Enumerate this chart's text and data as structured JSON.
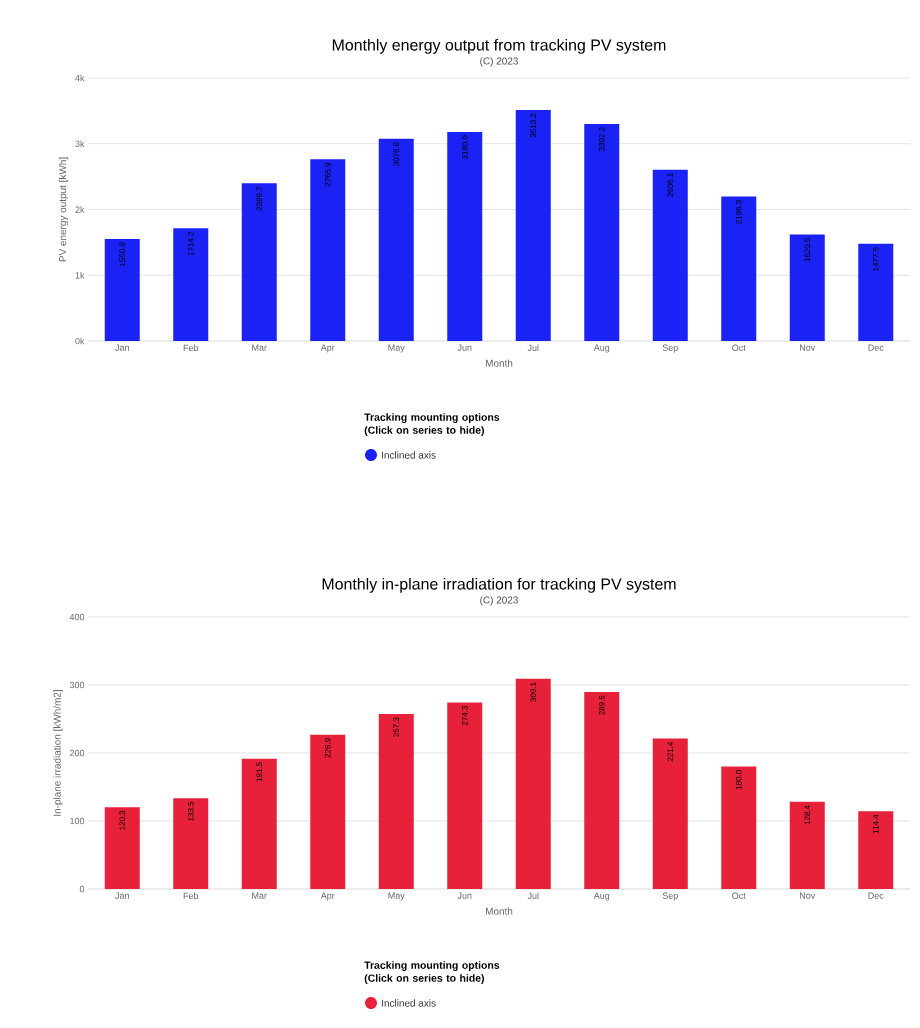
{
  "chart_data": [
    {
      "type": "bar",
      "title": "Monthly energy output from tracking PV system",
      "subtitle": "(C) 2023",
      "xlabel": "Month",
      "ylabel": "PV energy output [kWh]",
      "legend_title": "Tracking mounting options (Click on series to hide)",
      "categories": [
        "Jan",
        "Feb",
        "Mar",
        "Apr",
        "May",
        "Jun",
        "Jul",
        "Aug",
        "Sep",
        "Oct",
        "Nov",
        "Dec"
      ],
      "series": [
        {
          "name": "Inclined axis",
          "color": "#1a22f5",
          "values": [
            1550.9,
            1714.2,
            2399.7,
            2765.9,
            3076.8,
            3180.0,
            3513.2,
            3302.2,
            2606.1,
            2196.3,
            1620.5,
            1477.5
          ],
          "value_labels": [
            "1550.9",
            "1714.2",
            "2399.7",
            "2765.9",
            "3076.8",
            "3180.0",
            "3513.2",
            "3302.2",
            "2606.1",
            "2196.3",
            "1620.5",
            "1477.5"
          ]
        }
      ],
      "ylim": [
        0,
        4000
      ],
      "yticks": [
        {
          "value": 0,
          "label": "0k"
        },
        {
          "value": 1000,
          "label": "1k"
        },
        {
          "value": 2000,
          "label": "2k"
        },
        {
          "value": 3000,
          "label": "3k"
        },
        {
          "value": 4000,
          "label": "4k"
        }
      ],
      "grid": "y",
      "legend": "bottom",
      "marker": "circle"
    },
    {
      "type": "bar",
      "title": "Monthly in-plane irradiation for tracking PV system",
      "subtitle": "(C) 2023",
      "xlabel": "Month",
      "ylabel": "In-plane irradiation [kWh/m2]",
      "legend_title": "Tracking mounting options (Click on series to hide)",
      "categories": [
        "Jan",
        "Feb",
        "Mar",
        "Apr",
        "May",
        "Jun",
        "Jul",
        "Aug",
        "Sep",
        "Oct",
        "Nov",
        "Dec"
      ],
      "series": [
        {
          "name": "Inclined axis",
          "color": "#e8213a",
          "values": [
            120.3,
            133.5,
            191.5,
            226.9,
            257.3,
            274.3,
            309.1,
            289.6,
            221.4,
            180.0,
            128.4,
            114.4
          ],
          "value_labels": [
            "120.3",
            "133.5",
            "191.5",
            "226.9",
            "257.3",
            "274.3",
            "309.1",
            "289.6",
            "221.4",
            "180.0",
            "128.4",
            "114.4"
          ]
        }
      ],
      "ylim": [
        0,
        400
      ],
      "yticks": [
        0,
        100,
        200,
        300,
        400
      ],
      "grid": "y",
      "legend": "bottom",
      "marker": "circle"
    }
  ]
}
